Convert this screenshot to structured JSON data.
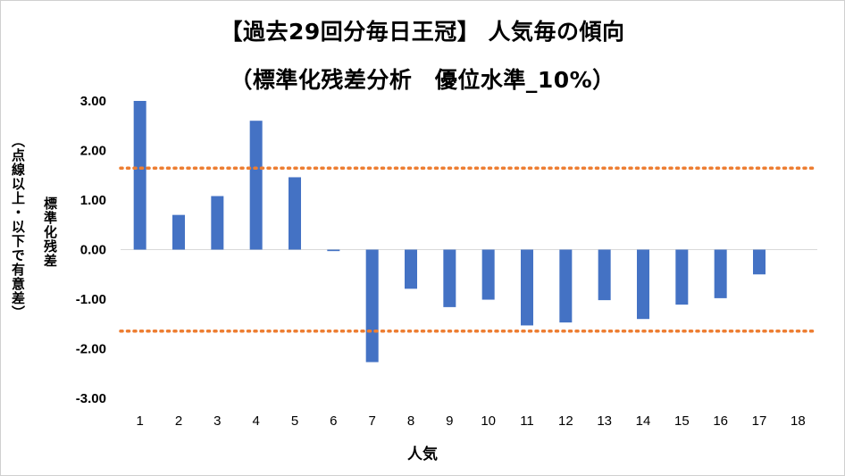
{
  "chart_data": {
    "type": "bar",
    "title_lines": [
      "【過去29回分毎日王冠】 人気毎の傾向",
      "（標準化残差分析　優位水準_10%）"
    ],
    "xlabel": "人気",
    "ylabel_lines": [
      "標準化残差",
      "（点線以上・以下で有意差）"
    ],
    "categories": [
      "1",
      "2",
      "3",
      "4",
      "5",
      "6",
      "7",
      "8",
      "9",
      "10",
      "11",
      "12",
      "13",
      "14",
      "15",
      "16",
      "17",
      "18"
    ],
    "values": [
      3.0,
      0.7,
      1.08,
      2.6,
      1.46,
      -0.03,
      -2.27,
      -0.79,
      -1.16,
      -1.01,
      -1.53,
      -1.47,
      -1.02,
      -1.4,
      -1.11,
      -0.98,
      -0.5,
      null
    ],
    "ylim": [
      -3.0,
      3.0
    ],
    "yticks": [
      "3.00",
      "2.00",
      "1.00",
      "0.00",
      "-1.00",
      "-2.00",
      "-3.00"
    ],
    "threshold_lines": [
      1.645,
      -1.645
    ],
    "grid": false,
    "legend": "none",
    "colors": {
      "bar": "#4472C4",
      "threshold": "#ED7D31",
      "axis": "#d9d9d9"
    }
  }
}
